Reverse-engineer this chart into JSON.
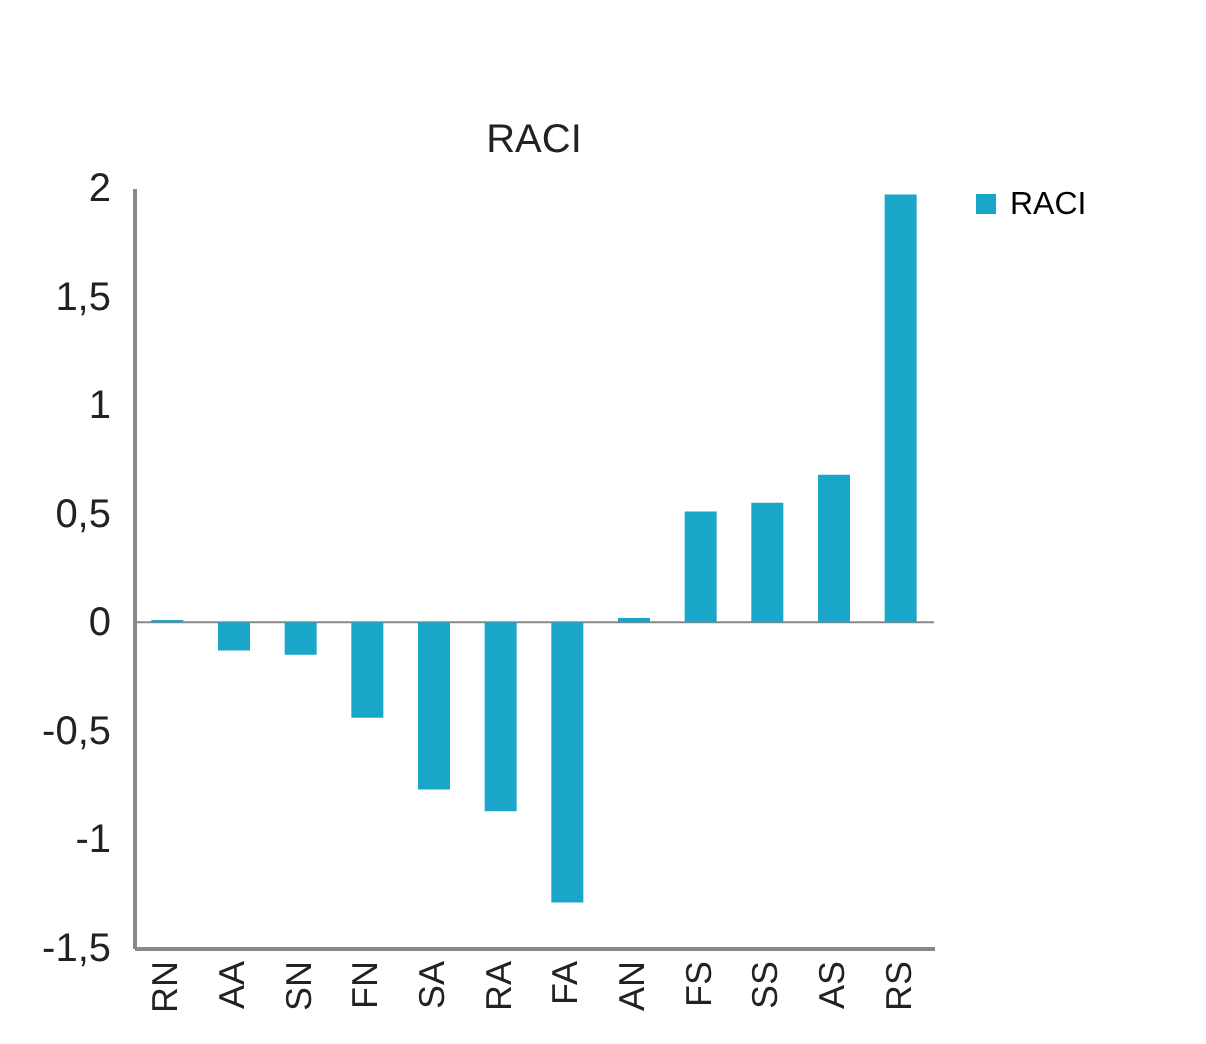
{
  "chart_data": {
    "type": "bar",
    "title": "RACI",
    "categories": [
      "RN",
      "AA",
      "SN",
      "FN",
      "SA",
      "RA",
      "FA",
      "AN",
      "FS",
      "SS",
      "AS",
      "RS"
    ],
    "series": [
      {
        "name": "RACI",
        "color": "#1aa6c8",
        "values": [
          0.01,
          -0.13,
          -0.15,
          -0.44,
          -0.77,
          -0.87,
          -1.29,
          0.02,
          0.51,
          0.55,
          0.68,
          1.97
        ]
      }
    ],
    "ylim": [
      -1.5,
      2
    ],
    "yticks": [
      {
        "value": -1.5,
        "label": "-1,5"
      },
      {
        "value": -1,
        "label": "-1"
      },
      {
        "value": -0.5,
        "label": "-0,5"
      },
      0,
      {
        "value": 0.5,
        "label": "0,5"
      },
      1,
      {
        "value": 1.5,
        "label": "1,5"
      },
      2
    ],
    "ref_lines": [
      {
        "axis": "y",
        "value": 0,
        "color": "#888888"
      }
    ],
    "grid": false,
    "legend": "right"
  }
}
